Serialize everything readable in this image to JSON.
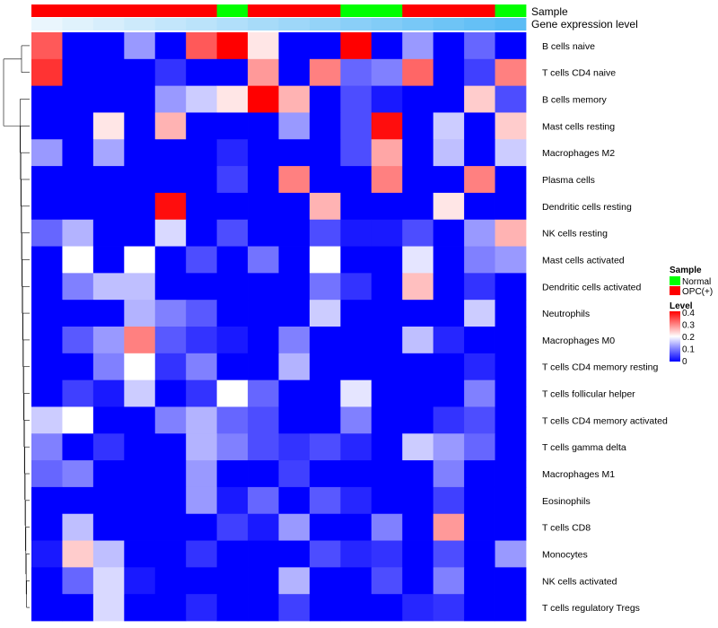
{
  "chart_data": {
    "type": "heatmap",
    "colors": {
      "low": "#0000ff",
      "mid": "#ffffff",
      "high": "#ff0000",
      "normal": "#00ff00",
      "opc": "#ff0000",
      "expr_light": "#eaf6fd",
      "expr_dark": "#5bbcf5"
    },
    "annotations": {
      "sample_label": "Sample",
      "expression_label": "Gene expression level",
      "sample_groups": [
        "OPC(+)",
        "OPC(+)",
        "OPC(+)",
        "OPC(+)",
        "OPC(+)",
        "OPC(+)",
        "Normal",
        "OPC(+)",
        "OPC(+)",
        "OPC(+)",
        "Normal",
        "Normal",
        "OPC(+)",
        "OPC(+)",
        "OPC(+)",
        "Normal"
      ],
      "expression_levels": [
        0.0,
        0.07,
        0.13,
        0.2,
        0.27,
        0.33,
        0.4,
        0.47,
        0.53,
        0.6,
        0.67,
        0.73,
        0.8,
        0.87,
        0.93,
        1.0
      ]
    },
    "rows": [
      "B cells naive",
      "T cells CD4 naive",
      "B cells memory",
      "Mast cells resting",
      "Macrophages M2",
      "Plasma cells",
      "Dendritic cells resting",
      "NK cells resting",
      "Mast cells activated",
      "Dendritic cells activated",
      "Neutrophils",
      "Macrophages M0",
      "T cells CD4 memory resting",
      "T cells follicular helper",
      "T cells CD4 memory activated",
      "T cells gamma delta",
      "Macrophages M1",
      "Eosinophils",
      "T cells CD8",
      "Monocytes",
      "NK cells activated",
      "T cells regulatory  Tregs"
    ],
    "values": [
      [
        0.33,
        0.0,
        0.0,
        0.12,
        0.0,
        0.33,
        0.4,
        0.22,
        0.0,
        0.0,
        0.4,
        0.0,
        0.12,
        0.0,
        0.08,
        0.0
      ],
      [
        0.36,
        0.0,
        0.0,
        0.0,
        0.04,
        0.0,
        0.0,
        0.28,
        0.0,
        0.3,
        0.08,
        0.1,
        0.32,
        0.0,
        0.05,
        0.3
      ],
      [
        0.0,
        0.0,
        0.0,
        0.0,
        0.12,
        0.16,
        0.22,
        0.4,
        0.26,
        0.0,
        0.06,
        0.02,
        0.0,
        0.0,
        0.24,
        0.06
      ],
      [
        0.0,
        0.0,
        0.22,
        0.0,
        0.26,
        0.0,
        0.0,
        0.0,
        0.12,
        0.0,
        0.06,
        0.39,
        0.0,
        0.16,
        0.0,
        0.24
      ],
      [
        0.12,
        0.0,
        0.13,
        0.0,
        0.0,
        0.0,
        0.03,
        0.0,
        0.0,
        0.0,
        0.06,
        0.27,
        0.0,
        0.15,
        0.0,
        0.16
      ],
      [
        0.0,
        0.0,
        0.0,
        0.0,
        0.0,
        0.0,
        0.05,
        0.0,
        0.3,
        0.0,
        0.0,
        0.3,
        0.0,
        0.0,
        0.3,
        0.0
      ],
      [
        0.0,
        0.0,
        0.0,
        0.0,
        0.39,
        0.0,
        0.0,
        0.0,
        0.0,
        0.26,
        0.0,
        0.0,
        0.0,
        0.22,
        0.0,
        0.0
      ],
      [
        0.08,
        0.14,
        0.0,
        0.0,
        0.17,
        0.0,
        0.06,
        0.0,
        0.0,
        0.06,
        0.02,
        0.02,
        0.06,
        0.0,
        0.12,
        0.26
      ],
      [
        0.0,
        0.2,
        0.0,
        0.2,
        0.0,
        0.06,
        0.0,
        0.09,
        0.0,
        0.2,
        0.0,
        0.0,
        0.18,
        0.0,
        0.1,
        0.12
      ],
      [
        0.0,
        0.1,
        0.15,
        0.15,
        0.0,
        0.0,
        0.0,
        0.0,
        0.0,
        0.09,
        0.04,
        0.0,
        0.25,
        0.0,
        0.04,
        0.0
      ],
      [
        0.0,
        0.0,
        0.0,
        0.14,
        0.1,
        0.07,
        0.0,
        0.0,
        0.0,
        0.16,
        0.0,
        0.0,
        0.0,
        0.0,
        0.16,
        0.0
      ],
      [
        0.0,
        0.07,
        0.12,
        0.3,
        0.07,
        0.04,
        0.02,
        0.0,
        0.1,
        0.0,
        0.0,
        0.0,
        0.15,
        0.03,
        0.0,
        0.0
      ],
      [
        0.0,
        0.0,
        0.1,
        0.2,
        0.04,
        0.1,
        0.0,
        0.0,
        0.14,
        0.0,
        0.0,
        0.0,
        0.0,
        0.0,
        0.03,
        0.0
      ],
      [
        0.0,
        0.05,
        0.02,
        0.16,
        0.0,
        0.04,
        0.2,
        0.08,
        0.0,
        0.0,
        0.18,
        0.0,
        0.0,
        0.0,
        0.1,
        0.0
      ],
      [
        0.16,
        0.2,
        0.0,
        0.0,
        0.1,
        0.14,
        0.08,
        0.06,
        0.0,
        0.0,
        0.1,
        0.0,
        0.0,
        0.04,
        0.06,
        0.0
      ],
      [
        0.1,
        0.0,
        0.04,
        0.0,
        0.0,
        0.14,
        0.1,
        0.06,
        0.04,
        0.06,
        0.03,
        0.0,
        0.16,
        0.12,
        0.08,
        0.0
      ],
      [
        0.08,
        0.1,
        0.0,
        0.0,
        0.0,
        0.12,
        0.0,
        0.0,
        0.05,
        0.0,
        0.0,
        0.0,
        0.0,
        0.1,
        0.0,
        0.0
      ],
      [
        0.0,
        0.0,
        0.0,
        0.0,
        0.0,
        0.12,
        0.02,
        0.08,
        0.0,
        0.07,
        0.03,
        0.0,
        0.0,
        0.05,
        0.0,
        0.0
      ],
      [
        0.0,
        0.15,
        0.0,
        0.0,
        0.0,
        0.0,
        0.05,
        0.02,
        0.12,
        0.0,
        0.0,
        0.1,
        0.0,
        0.28,
        0.0,
        0.0
      ],
      [
        0.02,
        0.24,
        0.15,
        0.0,
        0.0,
        0.04,
        0.0,
        0.0,
        0.0,
        0.06,
        0.03,
        0.04,
        0.0,
        0.06,
        0.0,
        0.12
      ],
      [
        0.0,
        0.08,
        0.17,
        0.02,
        0.0,
        0.0,
        0.0,
        0.0,
        0.14,
        0.0,
        0.0,
        0.06,
        0.0,
        0.1,
        0.0,
        0.0
      ],
      [
        0.0,
        0.0,
        0.17,
        0.0,
        0.0,
        0.03,
        0.0,
        0.0,
        0.05,
        0.0,
        0.0,
        0.0,
        0.03,
        0.04,
        0.0,
        0.0
      ]
    ],
    "legend": {
      "sample_title": "Sample",
      "sample_entries": [
        {
          "label": "Normal",
          "color": "#00ff00"
        },
        {
          "label": "OPC(+)",
          "color": "#ff0000"
        }
      ],
      "level_title": "Level",
      "level_ticks": [
        "0.4",
        "0.3",
        "0.2",
        "0.1",
        "0"
      ],
      "level_range": [
        0,
        0.4
      ],
      "placement": "right"
    }
  }
}
